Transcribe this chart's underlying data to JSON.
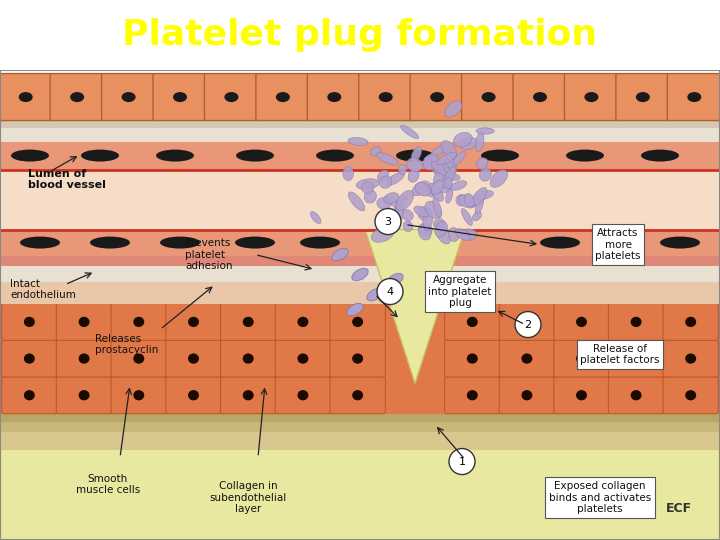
{
  "title": "Platelet plug formation",
  "title_color": "#FFFF00",
  "title_bg_color": "#1a1acc",
  "title_fontsize": 26,
  "labels": {
    "lumen": "Lumen of\nblood vessel",
    "intact_endo": "Intact\nendothelium",
    "releases_prosta": "Releases\nprostacyclin",
    "prevents": "Prevents\nplatelet\nadhesion",
    "step3": "Attracts\nmore\nplatelets",
    "step4_label": "Aggregate\ninto platelet\nplug",
    "step2": "Release of\nplatelet factors",
    "smooth": "Smooth\nmuscle cells",
    "collagen": "Collagen in\nsubendothelial\nlayer",
    "step1": "Exposed collagen\nbinds and activates\nplatelets",
    "ecf": "ECF"
  },
  "colors": {
    "lumen_bg": "#f5ddc8",
    "ecf_bg": "#e8e8a0",
    "smooth_muscle_fill": "#e07848",
    "smooth_muscle_outline": "#c05828",
    "smooth_muscle_nucleus": "#1a0a00",
    "top_cells_fill": "#e89060",
    "top_cells_outline": "#b06030",
    "endo_band_fill": "#e8a080",
    "endo_nucleus": "#1a1a1a",
    "platelet_fill": "#b0a0cc",
    "platelet_edge": "#8878aa",
    "subendo_fill": "#e8c8a8",
    "red_line": "#cc3322",
    "white_fibrous": "#e8e0d0",
    "wound_fill": "#e8e8a0",
    "border": "#888888"
  }
}
